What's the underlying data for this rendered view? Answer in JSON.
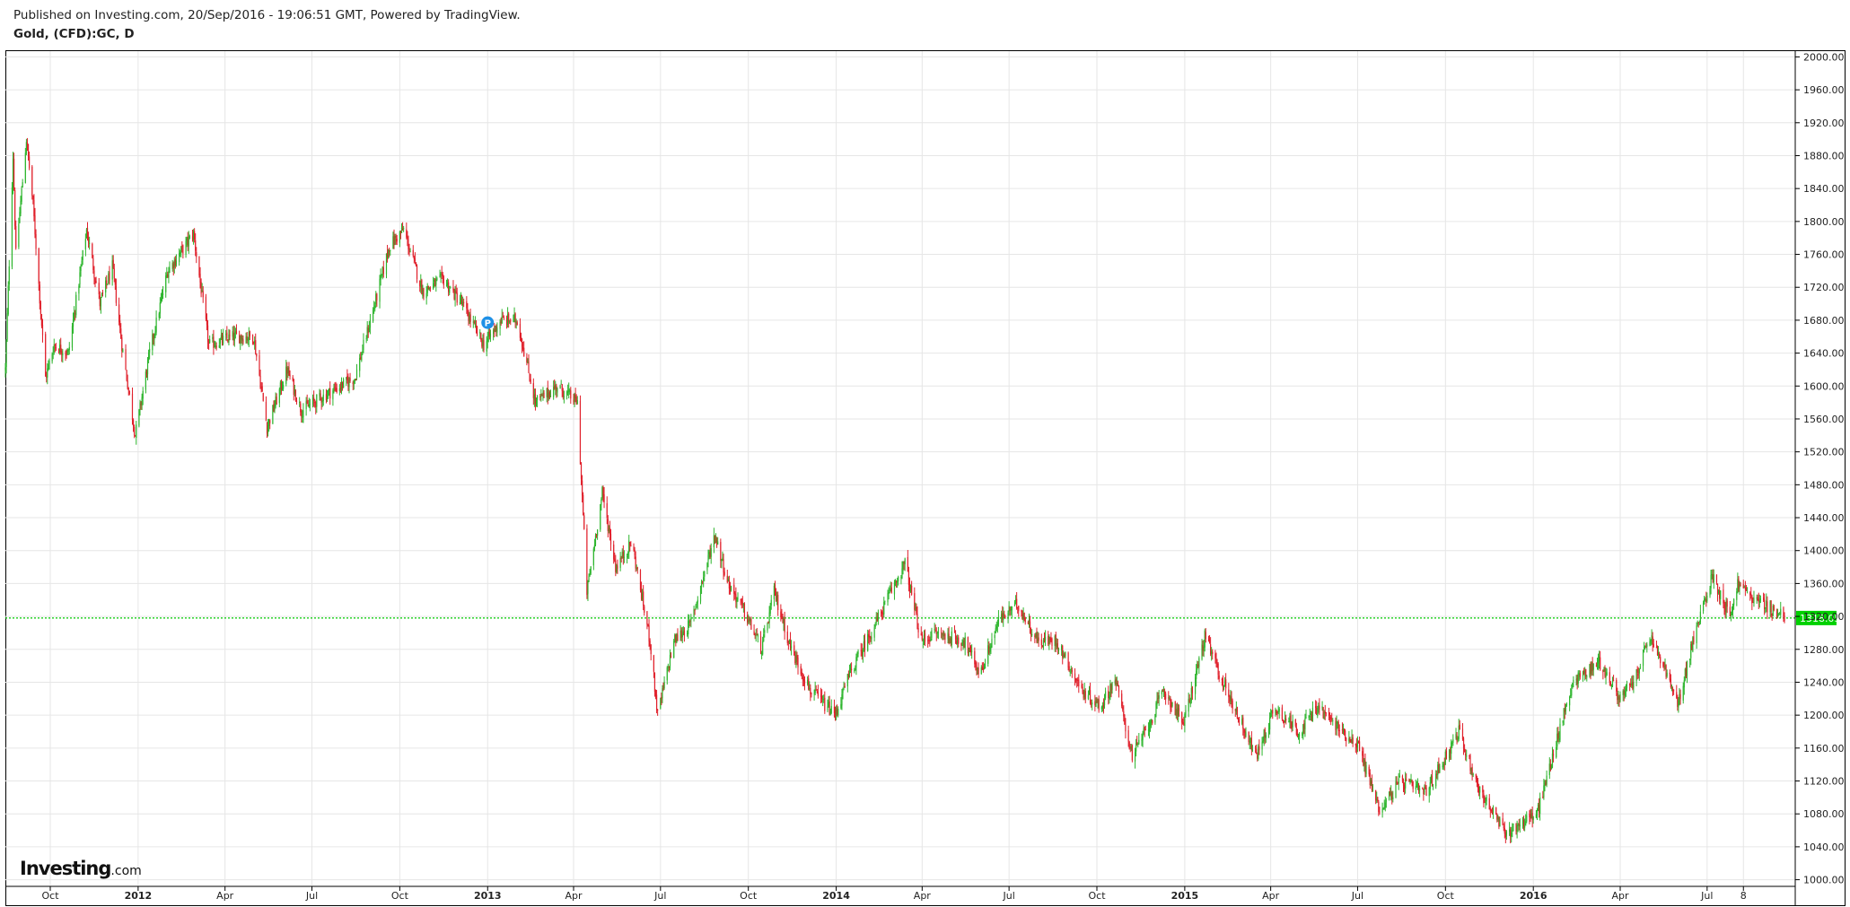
{
  "header": {
    "published": "Published on Investing.com, 20/Sep/2016 - 19:06:51 GMT, Powered by TradingView.",
    "symbol": "Gold, (CFD):GC, D"
  },
  "brand": {
    "name": "Investing",
    "suffix": ".com"
  },
  "colors": {
    "up": "#2db52d",
    "down": "#e0202b",
    "grid": "#e6e6e6",
    "last_price_line": "#00cc00",
    "last_price_badge": "#00d000",
    "marker": "#1e90e6"
  },
  "marker": {
    "icon": "publish-marker-icon",
    "label": "P"
  },
  "chart_data": {
    "type": "candlestick",
    "title": "Gold, (CFD):GC, D",
    "x_axis": {
      "type": "date",
      "range": [
        "2011-08-15",
        "2016-09-20"
      ],
      "ticks": [
        {
          "date": "2011-10-01",
          "label": "Oct",
          "bold": false
        },
        {
          "date": "2012-01-01",
          "label": "2012",
          "bold": true
        },
        {
          "date": "2012-04-01",
          "label": "Apr",
          "bold": false
        },
        {
          "date": "2012-07-01",
          "label": "Jul",
          "bold": false
        },
        {
          "date": "2012-10-01",
          "label": "Oct",
          "bold": false
        },
        {
          "date": "2013-01-01",
          "label": "2013",
          "bold": true
        },
        {
          "date": "2013-04-01",
          "label": "Apr",
          "bold": false
        },
        {
          "date": "2013-07-01",
          "label": "Jul",
          "bold": false
        },
        {
          "date": "2013-10-01",
          "label": "Oct",
          "bold": false
        },
        {
          "date": "2014-01-01",
          "label": "2014",
          "bold": true
        },
        {
          "date": "2014-04-01",
          "label": "Apr",
          "bold": false
        },
        {
          "date": "2014-07-01",
          "label": "Jul",
          "bold": false
        },
        {
          "date": "2014-10-01",
          "label": "Oct",
          "bold": false
        },
        {
          "date": "2015-01-01",
          "label": "2015",
          "bold": true
        },
        {
          "date": "2015-04-01",
          "label": "Apr",
          "bold": false
        },
        {
          "date": "2015-07-01",
          "label": "Jul",
          "bold": false
        },
        {
          "date": "2015-10-01",
          "label": "Oct",
          "bold": false
        },
        {
          "date": "2016-01-01",
          "label": "2016",
          "bold": true
        },
        {
          "date": "2016-04-01",
          "label": "Apr",
          "bold": false
        },
        {
          "date": "2016-07-01",
          "label": "Jul",
          "bold": false
        },
        {
          "date": "2016-08-08",
          "label": "8",
          "bold": false
        }
      ]
    },
    "y_axis": {
      "range": [
        993,
        2007
      ],
      "ticks": [
        "1000.00",
        "1040.00",
        "1080.00",
        "1120.00",
        "1160.00",
        "1200.00",
        "1240.00",
        "1280.00",
        "1320.00",
        "1360.00",
        "1400.00",
        "1440.00",
        "1480.00",
        "1520.00",
        "1560.00",
        "1600.00",
        "1640.00",
        "1680.00",
        "1720.00",
        "1760.00",
        "1800.00",
        "1840.00",
        "1880.00",
        "1920.00",
        "1960.00",
        "2000.00"
      ]
    },
    "last_price": 1318.05,
    "last_price_label": "1318.05",
    "grid": true,
    "marker_point": {
      "date": "2013-01-01",
      "price": 1677
    },
    "price_path": [
      [
        "2011-08-15",
        1620
      ],
      [
        "2011-08-23",
        1880
      ],
      [
        "2011-08-26",
        1760
      ],
      [
        "2011-09-06",
        1900
      ],
      [
        "2011-09-13",
        1820
      ],
      [
        "2011-09-26",
        1610
      ],
      [
        "2011-10-05",
        1650
      ],
      [
        "2011-10-20",
        1640
      ],
      [
        "2011-11-08",
        1790
      ],
      [
        "2011-11-22",
        1700
      ],
      [
        "2011-12-05",
        1745
      ],
      [
        "2011-12-15",
        1650
      ],
      [
        "2011-12-29",
        1540
      ],
      [
        "2012-01-13",
        1640
      ],
      [
        "2012-02-01",
        1740
      ],
      [
        "2012-02-28",
        1785
      ],
      [
        "2012-03-15",
        1650
      ],
      [
        "2012-04-10",
        1660
      ],
      [
        "2012-05-01",
        1660
      ],
      [
        "2012-05-15",
        1550
      ],
      [
        "2012-06-05",
        1620
      ],
      [
        "2012-06-20",
        1570
      ],
      [
        "2012-07-16",
        1590
      ],
      [
        "2012-08-15",
        1610
      ],
      [
        "2012-09-05",
        1700
      ],
      [
        "2012-09-20",
        1770
      ],
      [
        "2012-10-05",
        1790
      ],
      [
        "2012-10-25",
        1715
      ],
      [
        "2012-11-15",
        1730
      ],
      [
        "2012-12-05",
        1700
      ],
      [
        "2012-12-28",
        1650
      ],
      [
        "2013-01-15",
        1680
      ],
      [
        "2013-02-01",
        1680
      ],
      [
        "2013-02-20",
        1580
      ],
      [
        "2013-03-15",
        1600
      ],
      [
        "2013-04-05",
        1580
      ],
      [
        "2013-04-15",
        1350
      ],
      [
        "2013-05-01",
        1470
      ],
      [
        "2013-05-15",
        1380
      ],
      [
        "2013-06-01",
        1410
      ],
      [
        "2013-06-20",
        1290
      ],
      [
        "2013-06-28",
        1200
      ],
      [
        "2013-07-15",
        1290
      ],
      [
        "2013-08-01",
        1310
      ],
      [
        "2013-08-27",
        1420
      ],
      [
        "2013-09-10",
        1360
      ],
      [
        "2013-09-25",
        1330
      ],
      [
        "2013-10-15",
        1280
      ],
      [
        "2013-10-28",
        1350
      ],
      [
        "2013-11-15",
        1280
      ],
      [
        "2013-12-05",
        1230
      ],
      [
        "2013-12-31",
        1200
      ],
      [
        "2014-01-15",
        1250
      ],
      [
        "2014-02-15",
        1320
      ],
      [
        "2014-03-14",
        1385
      ],
      [
        "2014-03-31",
        1290
      ],
      [
        "2014-04-15",
        1300
      ],
      [
        "2014-05-15",
        1290
      ],
      [
        "2014-06-01",
        1250
      ],
      [
        "2014-06-20",
        1315
      ],
      [
        "2014-07-10",
        1335
      ],
      [
        "2014-07-31",
        1290
      ],
      [
        "2014-08-20",
        1290
      ],
      [
        "2014-09-15",
        1230
      ],
      [
        "2014-10-05",
        1210
      ],
      [
        "2014-10-20",
        1245
      ],
      [
        "2014-11-07",
        1150
      ],
      [
        "2014-11-25",
        1190
      ],
      [
        "2014-12-10",
        1230
      ],
      [
        "2014-12-31",
        1190
      ],
      [
        "2015-01-22",
        1295
      ],
      [
        "2015-02-10",
        1240
      ],
      [
        "2015-03-17",
        1150
      ],
      [
        "2015-04-05",
        1210
      ],
      [
        "2015-05-01",
        1180
      ],
      [
        "2015-05-20",
        1210
      ],
      [
        "2015-06-15",
        1180
      ],
      [
        "2015-07-01",
        1165
      ],
      [
        "2015-07-24",
        1085
      ],
      [
        "2015-08-15",
        1120
      ],
      [
        "2015-09-10",
        1105
      ],
      [
        "2015-10-15",
        1180
      ],
      [
        "2015-11-05",
        1110
      ],
      [
        "2015-12-03",
        1055
      ],
      [
        "2015-12-20",
        1070
      ],
      [
        "2016-01-05",
        1080
      ],
      [
        "2016-02-11",
        1240
      ],
      [
        "2016-03-10",
        1265
      ],
      [
        "2016-04-01",
        1220
      ],
      [
        "2016-04-15",
        1240
      ],
      [
        "2016-05-02",
        1295
      ],
      [
        "2016-05-20",
        1250
      ],
      [
        "2016-05-31",
        1210
      ],
      [
        "2016-06-15",
        1285
      ],
      [
        "2016-06-24",
        1320
      ],
      [
        "2016-07-06",
        1370
      ],
      [
        "2016-07-25",
        1320
      ],
      [
        "2016-08-02",
        1360
      ],
      [
        "2016-08-20",
        1340
      ],
      [
        "2016-09-06",
        1330
      ],
      [
        "2016-09-20",
        1318
      ]
    ]
  }
}
